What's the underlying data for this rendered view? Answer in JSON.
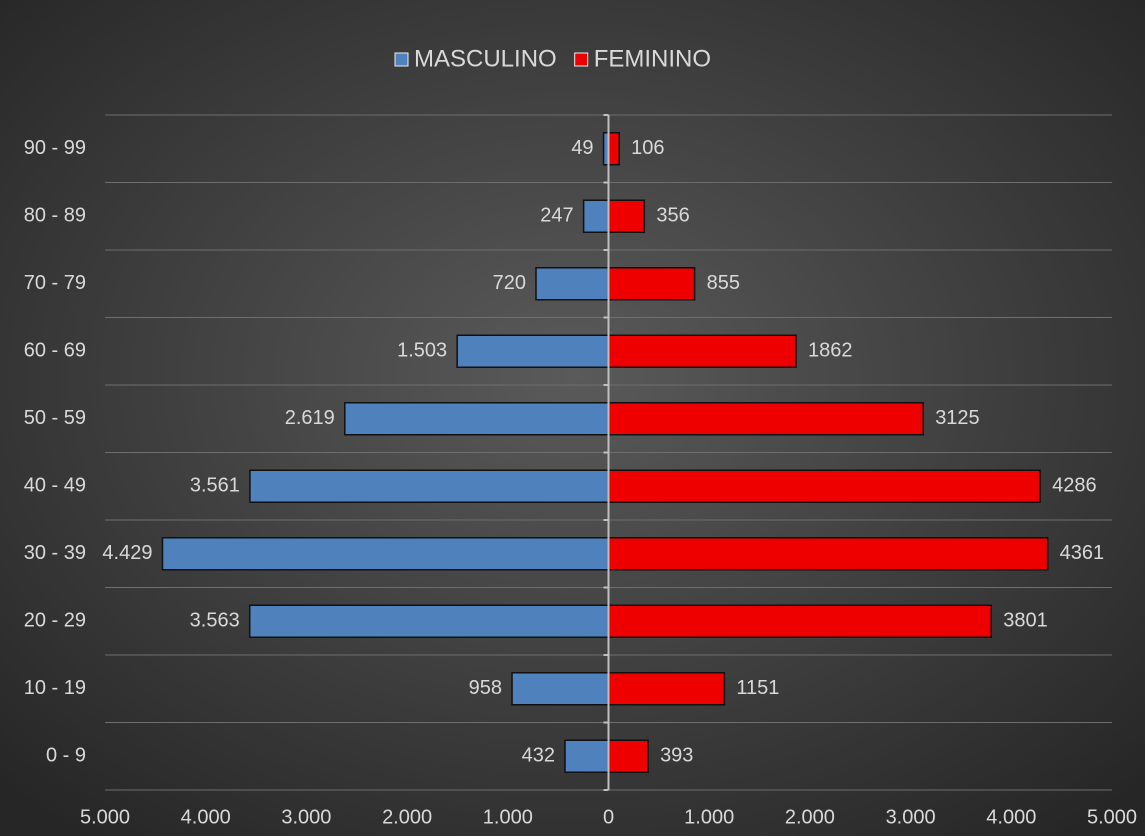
{
  "chart_data": {
    "type": "population_pyramid",
    "categories": [
      "0 - 9",
      "10 - 19",
      "20 - 29",
      "30 - 39",
      "40 - 49",
      "50 - 59",
      "60 - 69",
      "70 - 79",
      "80 - 89",
      "90 - 99"
    ],
    "series": [
      {
        "name": "MASCULINO",
        "color": "#4f81bd",
        "side": "left",
        "values": [
          432,
          958,
          3563,
          4429,
          3561,
          2619,
          1503,
          720,
          247,
          49
        ],
        "value_labels": [
          "432",
          "958",
          "3.563",
          "4.429",
          "3.561",
          "2.619",
          "1.503",
          "720",
          "247",
          "49"
        ]
      },
      {
        "name": "FEMININO",
        "color": "#ee0000",
        "side": "right",
        "values": [
          393,
          1151,
          3801,
          4361,
          4286,
          3125,
          1862,
          855,
          356,
          106
        ]
      }
    ],
    "xlim": [
      -5000,
      5000
    ],
    "xticks": [
      {
        "value": -5000,
        "label": "5.000"
      },
      {
        "value": -4000,
        "label": "4.000"
      },
      {
        "value": -3000,
        "label": "3.000"
      },
      {
        "value": -2000,
        "label": "2.000"
      },
      {
        "value": -1000,
        "label": "1.000"
      },
      0,
      {
        "value": 1000,
        "label": "1.000"
      },
      {
        "value": 2000,
        "label": "2.000"
      },
      {
        "value": 3000,
        "label": "3.000"
      },
      {
        "value": 4000,
        "label": "4.000"
      },
      {
        "value": 5000,
        "label": "5.000"
      }
    ],
    "legend": "top"
  }
}
